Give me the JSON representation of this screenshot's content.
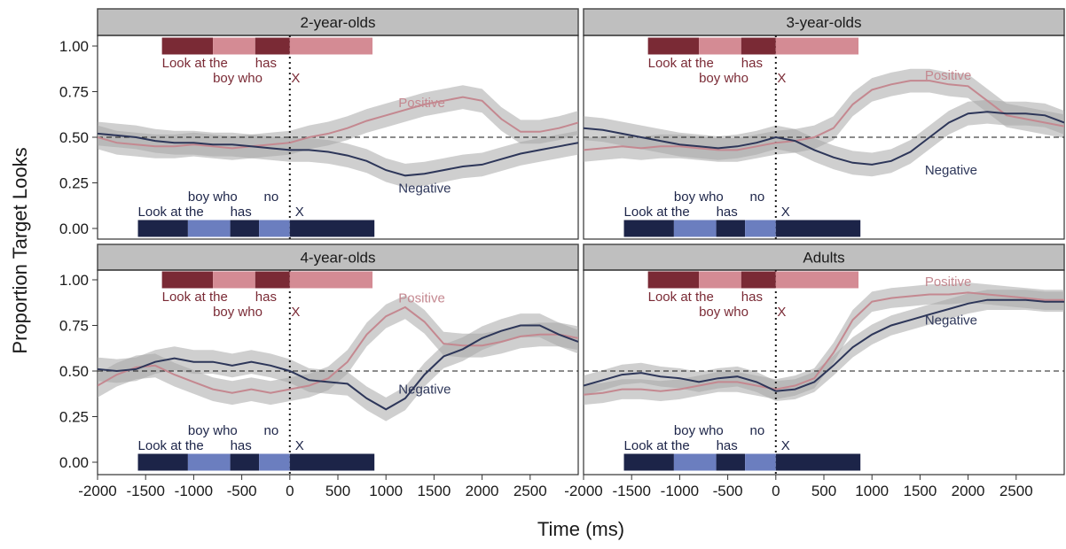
{
  "chart_data": {
    "type": "line",
    "ylabel": "Proportion Target Looks",
    "xlabel": "Time (ms)",
    "xlim": [
      -2000,
      3000
    ],
    "ylim": [
      -0.05,
      1.07
    ],
    "x_ticks": [
      -2000,
      -1500,
      -1000,
      -500,
      0,
      500,
      1000,
      1500,
      2000,
      2500
    ],
    "x_tick_labels": [
      "-2000",
      "-1500",
      "-1000",
      "-500",
      "0",
      "500",
      "1000",
      "1500",
      "2000",
      "2500"
    ],
    "y_ticks": [
      0,
      0.25,
      0.5,
      0.75,
      1.0
    ],
    "y_tick_labels": [
      "0.00",
      "0.25",
      "0.50",
      "0.75",
      "1.00"
    ],
    "reference_lines": {
      "horizontal_dashed_y": 0.5,
      "vertical_dotted_x": 0
    },
    "colors": {
      "positive": "#c48890",
      "negative": "#2d3659",
      "ribbon": "#a8a8a8",
      "strip": "#bfbfbf",
      "pos_dark": "#7a2a35",
      "pos_light": "#d48b94",
      "neg_dark": "#1c2448",
      "neg_light": "#6b7ebf"
    },
    "timelines": {
      "positive": {
        "y": 1.0,
        "segments": [
          {
            "from": -1330,
            "to": -800,
            "shade": "dark"
          },
          {
            "from": -800,
            "to": -360,
            "shade": "light"
          },
          {
            "from": -360,
            "to": 0,
            "shade": "dark"
          },
          {
            "from": 0,
            "to": 860,
            "shade": "light"
          }
        ],
        "words": [
          {
            "text": "Look at the",
            "x": -1330,
            "row": 1
          },
          {
            "text": "has",
            "x": -360,
            "row": 1
          },
          {
            "text": "boy who",
            "x": -800,
            "row": 2
          },
          {
            "text": "X",
            "x": 15,
            "row": 2
          }
        ]
      },
      "negative": {
        "y": 0.0,
        "segments": [
          {
            "from": -1580,
            "to": -1060,
            "shade": "dark"
          },
          {
            "from": -1060,
            "to": -620,
            "shade": "light"
          },
          {
            "from": -620,
            "to": -320,
            "shade": "dark"
          },
          {
            "from": -320,
            "to": 0,
            "shade": "light"
          },
          {
            "from": 0,
            "to": 880,
            "shade": "dark"
          }
        ],
        "words": [
          {
            "text": "boy who",
            "x": -1060,
            "row": 2
          },
          {
            "text": "no",
            "x": -270,
            "row": 2
          },
          {
            "text": "Look at the",
            "x": -1580,
            "row": 1
          },
          {
            "text": "has",
            "x": -620,
            "row": 1
          },
          {
            "text": "X",
            "x": 55,
            "row": 1
          }
        ]
      }
    },
    "panels": [
      {
        "title": "2-year-olds",
        "labels": [
          {
            "text": "Positive",
            "x": 1130,
            "y": 0.69,
            "series": "positive"
          },
          {
            "text": "Negative",
            "x": 1130,
            "y": 0.22,
            "series": "negative"
          }
        ],
        "series": [
          {
            "name": "Positive",
            "half_band": 0.065,
            "x": [
              -2000,
              -1800,
              -1600,
              -1400,
              -1200,
              -1000,
              -800,
              -600,
              -400,
              -200,
              0,
              200,
              400,
              600,
              800,
              1000,
              1200,
              1400,
              1600,
              1800,
              2000,
              2200,
              2400,
              2600,
              2800,
              3000
            ],
            "y": [
              0.5,
              0.47,
              0.46,
              0.45,
              0.45,
              0.46,
              0.45,
              0.44,
              0.45,
              0.46,
              0.47,
              0.5,
              0.52,
              0.55,
              0.59,
              0.62,
              0.65,
              0.68,
              0.7,
              0.72,
              0.7,
              0.6,
              0.53,
              0.53,
              0.55,
              0.58
            ]
          },
          {
            "name": "Negative",
            "half_band": 0.065,
            "x": [
              -2000,
              -1800,
              -1600,
              -1400,
              -1200,
              -1000,
              -800,
              -600,
              -400,
              -200,
              0,
              200,
              400,
              600,
              800,
              1000,
              1200,
              1400,
              1600,
              1800,
              2000,
              2200,
              2400,
              2600,
              2800,
              3000
            ],
            "y": [
              0.52,
              0.51,
              0.5,
              0.48,
              0.47,
              0.47,
              0.46,
              0.46,
              0.45,
              0.44,
              0.43,
              0.43,
              0.42,
              0.4,
              0.37,
              0.32,
              0.29,
              0.3,
              0.32,
              0.34,
              0.35,
              0.38,
              0.41,
              0.43,
              0.45,
              0.47
            ]
          }
        ]
      },
      {
        "title": "3-year-olds",
        "labels": [
          {
            "text": "Positive",
            "x": 1550,
            "y": 0.84,
            "series": "positive"
          },
          {
            "text": "Negative",
            "x": 1550,
            "y": 0.32,
            "series": "negative"
          }
        ],
        "series": [
          {
            "name": "Positive",
            "half_band": 0.065,
            "x": [
              -2000,
              -1800,
              -1600,
              -1400,
              -1200,
              -1000,
              -800,
              -600,
              -400,
              -200,
              0,
              200,
              400,
              600,
              800,
              1000,
              1200,
              1400,
              1600,
              1800,
              2000,
              2200,
              2400,
              2600,
              2800,
              3000
            ],
            "y": [
              0.43,
              0.44,
              0.45,
              0.44,
              0.45,
              0.45,
              0.44,
              0.43,
              0.43,
              0.45,
              0.47,
              0.48,
              0.5,
              0.55,
              0.68,
              0.76,
              0.79,
              0.81,
              0.81,
              0.79,
              0.78,
              0.7,
              0.62,
              0.6,
              0.58,
              0.56
            ]
          },
          {
            "name": "Negative",
            "half_band": 0.065,
            "x": [
              -2000,
              -1800,
              -1600,
              -1400,
              -1200,
              -1000,
              -800,
              -600,
              -400,
              -200,
              0,
              200,
              400,
              600,
              800,
              1000,
              1200,
              1400,
              1600,
              1800,
              2000,
              2200,
              2400,
              2600,
              2800,
              3000
            ],
            "y": [
              0.55,
              0.54,
              0.52,
              0.5,
              0.48,
              0.46,
              0.45,
              0.44,
              0.45,
              0.47,
              0.5,
              0.48,
              0.43,
              0.39,
              0.36,
              0.35,
              0.37,
              0.42,
              0.5,
              0.58,
              0.63,
              0.64,
              0.63,
              0.63,
              0.62,
              0.58
            ]
          }
        ]
      },
      {
        "title": "4-year-olds",
        "labels": [
          {
            "text": "Positive",
            "x": 1130,
            "y": 0.9,
            "series": "positive"
          },
          {
            "text": "Negative",
            "x": 1130,
            "y": 0.4,
            "series": "negative"
          }
        ],
        "series": [
          {
            "name": "Positive",
            "half_band": 0.065,
            "x": [
              -2000,
              -1800,
              -1600,
              -1400,
              -1200,
              -1000,
              -800,
              -600,
              -400,
              -200,
              0,
              200,
              400,
              600,
              800,
              1000,
              1200,
              1400,
              1600,
              1800,
              2000,
              2200,
              2400,
              2600,
              2800,
              3000
            ],
            "y": [
              0.42,
              0.48,
              0.52,
              0.53,
              0.48,
              0.44,
              0.4,
              0.38,
              0.4,
              0.38,
              0.4,
              0.42,
              0.46,
              0.55,
              0.7,
              0.8,
              0.85,
              0.77,
              0.65,
              0.64,
              0.64,
              0.66,
              0.69,
              0.7,
              0.7,
              0.68
            ]
          },
          {
            "name": "Negative",
            "half_band": 0.065,
            "x": [
              -2000,
              -1800,
              -1600,
              -1400,
              -1200,
              -1000,
              -800,
              -600,
              -400,
              -200,
              0,
              200,
              400,
              600,
              800,
              1000,
              1200,
              1400,
              1600,
              1800,
              2000,
              2200,
              2400,
              2600,
              2800,
              3000
            ],
            "y": [
              0.51,
              0.5,
              0.51,
              0.55,
              0.57,
              0.55,
              0.55,
              0.53,
              0.55,
              0.53,
              0.5,
              0.45,
              0.44,
              0.43,
              0.35,
              0.29,
              0.35,
              0.48,
              0.58,
              0.62,
              0.68,
              0.72,
              0.75,
              0.75,
              0.7,
              0.66
            ]
          }
        ]
      },
      {
        "title": "Adults",
        "labels": [
          {
            "text": "Positive",
            "x": 1550,
            "y": 0.99,
            "series": "positive"
          },
          {
            "text": "Negative",
            "x": 1550,
            "y": 0.78,
            "series": "negative"
          }
        ],
        "series": [
          {
            "name": "Positive",
            "half_band": 0.055,
            "x": [
              -2000,
              -1800,
              -1600,
              -1400,
              -1200,
              -1000,
              -800,
              -600,
              -400,
              -200,
              0,
              200,
              400,
              600,
              800,
              1000,
              1200,
              1400,
              1600,
              1800,
              2000,
              2200,
              2400,
              2600,
              2800,
              3000
            ],
            "y": [
              0.37,
              0.38,
              0.4,
              0.4,
              0.39,
              0.4,
              0.42,
              0.44,
              0.44,
              0.42,
              0.4,
              0.42,
              0.46,
              0.6,
              0.78,
              0.88,
              0.9,
              0.91,
              0.92,
              0.92,
              0.93,
              0.92,
              0.91,
              0.9,
              0.89,
              0.89
            ]
          },
          {
            "name": "Negative",
            "half_band": 0.055,
            "x": [
              -2000,
              -1800,
              -1600,
              -1400,
              -1200,
              -1000,
              -800,
              -600,
              -400,
              -200,
              0,
              200,
              400,
              600,
              800,
              1000,
              1200,
              1400,
              1600,
              1800,
              2000,
              2200,
              2400,
              2600,
              2800,
              3000
            ],
            "y": [
              0.42,
              0.45,
              0.48,
              0.49,
              0.47,
              0.46,
              0.44,
              0.46,
              0.47,
              0.44,
              0.39,
              0.4,
              0.44,
              0.53,
              0.63,
              0.7,
              0.75,
              0.78,
              0.81,
              0.84,
              0.87,
              0.89,
              0.89,
              0.89,
              0.88,
              0.88
            ]
          }
        ]
      }
    ]
  }
}
